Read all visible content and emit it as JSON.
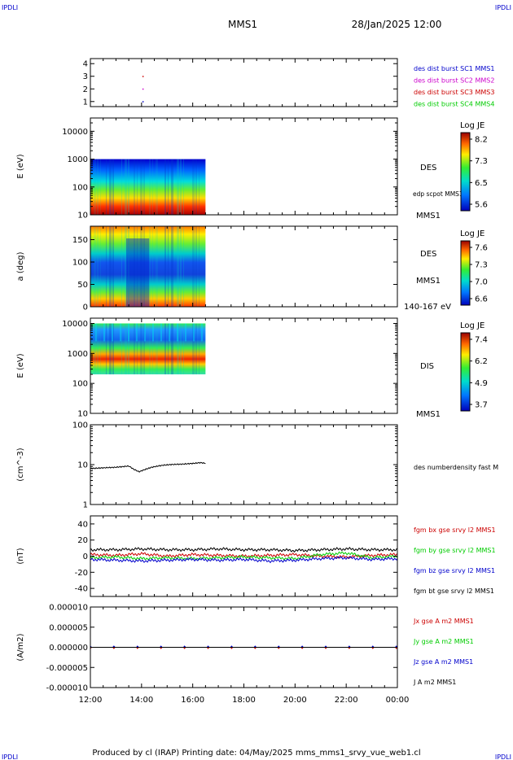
{
  "header": {
    "corner_left": "IPDLI",
    "corner_right": "IPDLI",
    "spacecraft": "MMS1",
    "datetime": "28/Jan/2025 12:00"
  },
  "footer": {
    "produced_by": "Produced by  cl (IRAP)   Printing date: 04/May/2025   mms_mms1_srvy_vue_web1.cl",
    "corner_left": "IPDLI",
    "corner_right": "IPDLI"
  },
  "time_axis": {
    "ticks": [
      "12:00",
      "14:00",
      "16:00",
      "18:00",
      "20:00",
      "22:00",
      "00:00"
    ],
    "start_hour": 12,
    "end_hour": 24
  },
  "colors": {
    "blue": "#0000cc",
    "magenta": "#cc00cc",
    "red": "#cc0000",
    "green": "#00cc00",
    "black": "#000000"
  },
  "chart_data": [
    {
      "type": "scatter",
      "yticks": [
        "1",
        "2",
        "3",
        "4"
      ],
      "ylim": [
        0.6,
        4.4
      ],
      "points": [
        {
          "x": 14.05,
          "y": 1,
          "color": "#0000cc"
        },
        {
          "x": 14.05,
          "y": 2,
          "color": "#cc00cc"
        },
        {
          "x": 14.05,
          "y": 3,
          "color": "#cc0000"
        }
      ],
      "legend": [
        {
          "label": "des dist burst SC1 MMS1",
          "color": "#0000cc"
        },
        {
          "label": "des dist burst SC2 MMS2",
          "color": "#cc00cc"
        },
        {
          "label": "des dist burst SC3 MMS3",
          "color": "#cc0000"
        },
        {
          "label": "des dist burst SC4 MMS4",
          "color": "#00cc00"
        }
      ]
    },
    {
      "type": "heatmap",
      "ylabel": "E (eV)",
      "yscale": "log",
      "ylim": [
        10,
        30000
      ],
      "yticks": [
        "10",
        "100",
        "1000",
        "10000"
      ],
      "data_x_range": [
        12,
        16.5
      ],
      "data_y_range": [
        10,
        1000
      ],
      "label": "DES",
      "sublabel": "edp scpot MMS1",
      "spacecraft_label": "MMS1",
      "colorbar": {
        "title": "Log JE",
        "ticks": [
          "8.2",
          "7.3",
          "6.5",
          "5.6"
        ],
        "range": [
          5.6,
          8.2
        ]
      }
    },
    {
      "type": "heatmap",
      "ylabel": "a (deg)",
      "ylim": [
        0,
        180
      ],
      "yticks": [
        "0",
        "50",
        "100",
        "150"
      ],
      "data_x_range": [
        12,
        16.5
      ],
      "label": "DES",
      "spacecraft_label": "MMS1",
      "energy_label": "140-167 eV",
      "colorbar": {
        "title": "Log JE",
        "ticks": [
          "7.6",
          "7.3",
          "7.0",
          "6.6"
        ],
        "range": [
          6.6,
          7.6
        ]
      }
    },
    {
      "type": "heatmap",
      "ylabel": "E (eV)",
      "yscale": "log",
      "ylim": [
        10,
        15000
      ],
      "yticks": [
        "10",
        "100",
        "1000",
        "10000"
      ],
      "data_x_range": [
        12,
        16.5
      ],
      "data_y_range": [
        200,
        10000
      ],
      "label": "DIS",
      "spacecraft_label": "MMS1",
      "colorbar": {
        "title": "Log JE",
        "ticks": [
          "7.4",
          "6.2",
          "4.9",
          "3.7"
        ],
        "range": [
          3.7,
          7.4
        ]
      }
    },
    {
      "type": "line",
      "ylabel": "(cm^-3)",
      "yscale": "log",
      "ylim": [
        1,
        100
      ],
      "yticks": [
        "1",
        "10",
        "100"
      ],
      "series": [
        {
          "name": "des numberdensity fast M",
          "color": "#000000",
          "x": [
            12.0,
            12.5,
            13.0,
            13.5,
            13.7,
            13.9,
            14.1,
            14.4,
            14.8,
            15.2,
            15.6,
            16.0,
            16.3,
            16.5
          ],
          "y": [
            8.0,
            8.3,
            8.6,
            9.2,
            7.6,
            6.6,
            7.4,
            8.6,
            9.6,
            10.1,
            10.3,
            10.7,
            11.2,
            10.8
          ]
        }
      ]
    },
    {
      "type": "line",
      "ylabel": "(nT)",
      "ylim": [
        -50,
        50
      ],
      "yticks": [
        "40",
        "20",
        "0",
        "-20",
        "-40"
      ],
      "series": [
        {
          "name": "fgm bx gse srvy l2 MMS1",
          "color": "#cc0000",
          "x": [
            12,
            13,
            14,
            15,
            16,
            17,
            18,
            19,
            20,
            21,
            22,
            23,
            24
          ],
          "y": [
            2,
            1,
            3,
            0,
            2,
            1,
            0,
            1,
            2,
            0,
            -1,
            1,
            2
          ]
        },
        {
          "name": "fgm by gse srvy l2 MMS1",
          "color": "#00cc00",
          "x": [
            12,
            13,
            14,
            15,
            16,
            17,
            18,
            19,
            20,
            21,
            22,
            23,
            24
          ],
          "y": [
            -2,
            -1,
            -3,
            -2,
            -3,
            -2,
            -1,
            -2,
            -3,
            2,
            4,
            -2,
            0
          ]
        },
        {
          "name": "fgm bz gse srvy l2 MMS1",
          "color": "#0000cc",
          "x": [
            12,
            13,
            14,
            15,
            16,
            17,
            18,
            19,
            20,
            21,
            22,
            23,
            24
          ],
          "y": [
            -4,
            -5,
            -6,
            -5,
            -4,
            -5,
            -4,
            -6,
            -5,
            -3,
            -2,
            -4,
            -3
          ]
        },
        {
          "name": "fgm bt gse srvy l2 MMS1",
          "color": "#000000",
          "x": [
            12,
            13,
            14,
            15,
            16,
            17,
            18,
            19,
            20,
            21,
            22,
            23,
            24
          ],
          "y": [
            8,
            8,
            9,
            8,
            8,
            9,
            8,
            8,
            7,
            8,
            9,
            8,
            8
          ]
        }
      ]
    },
    {
      "type": "line",
      "ylabel": "(A/m2)",
      "ylim": [
        -1e-05,
        1e-05
      ],
      "yticks": [
        "0.000010",
        "0.000005",
        "0.000000",
        "-0.000005",
        "-0.000010"
      ],
      "series": [
        {
          "name": "Jx gse A m2 MMS1",
          "color": "#cc0000",
          "x": [
            12,
            24
          ],
          "y": [
            0,
            0
          ]
        },
        {
          "name": "Jy gse A m2 MMS1",
          "color": "#00cc00",
          "x": [
            12,
            24
          ],
          "y": [
            0,
            0
          ]
        },
        {
          "name": "Jz gse A m2 MMS1",
          "color": "#0000cc",
          "x": [
            12,
            24
          ],
          "y": [
            0,
            0
          ]
        },
        {
          "name": "J A m2 MMS1",
          "color": "#000000",
          "x": [
            12,
            24
          ],
          "y": [
            0,
            0
          ]
        }
      ]
    }
  ]
}
